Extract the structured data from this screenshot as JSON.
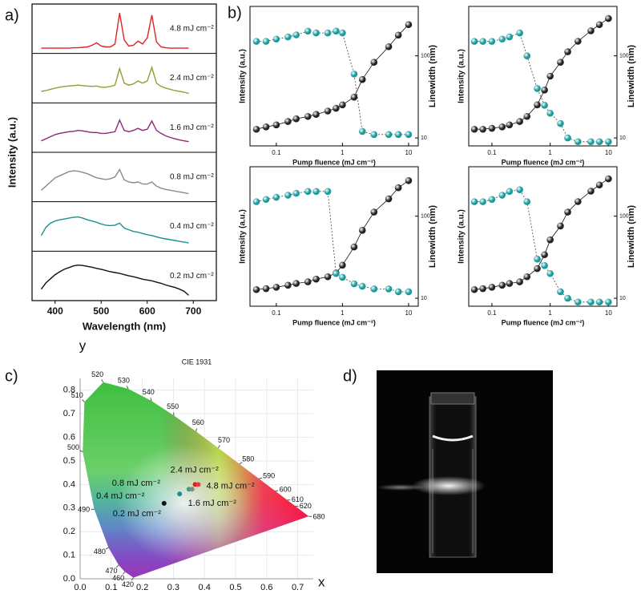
{
  "panel_labels": [
    "a)",
    "b)",
    "c)",
    "d)"
  ],
  "chart_data": [
    {
      "type": "line",
      "xlabel": "Wavelength (nm)",
      "ylabel": "Intensity (a.u.)",
      "x": [
        370,
        380,
        390,
        400,
        410,
        420,
        430,
        440,
        450,
        460,
        470,
        480,
        490,
        500,
        510,
        520,
        530,
        540,
        550,
        560,
        570,
        580,
        590,
        600,
        610,
        620,
        630,
        640,
        650,
        660,
        670,
        680,
        690
      ],
      "xlim": [
        350,
        750
      ],
      "xticks": [
        400,
        500,
        600,
        700
      ],
      "ylim": [
        0,
        1
      ],
      "series": [
        {
          "name": "4.8 mJ cm⁻²",
          "color": "#e02424",
          "values": [
            0.05,
            0.05,
            0.05,
            0.05,
            0.05,
            0.05,
            0.05,
            0.06,
            0.06,
            0.07,
            0.08,
            0.12,
            0.18,
            0.1,
            0.08,
            0.08,
            0.15,
            0.9,
            0.25,
            0.1,
            0.12,
            0.22,
            0.15,
            0.3,
            0.85,
            0.2,
            0.08,
            0.06,
            0.05,
            0.05,
            0.05,
            0.05,
            0.05
          ]
        },
        {
          "name": "2.4 mJ cm⁻²",
          "color": "#9a9a3a",
          "values": [
            0.2,
            0.22,
            0.25,
            0.28,
            0.3,
            0.32,
            0.33,
            0.34,
            0.35,
            0.34,
            0.33,
            0.32,
            0.33,
            0.3,
            0.3,
            0.32,
            0.35,
            0.75,
            0.4,
            0.35,
            0.38,
            0.45,
            0.4,
            0.45,
            0.78,
            0.4,
            0.32,
            0.28,
            0.25,
            0.22,
            0.2,
            0.18,
            0.15
          ]
        },
        {
          "name": "1.6 mJ cm⁻²",
          "color": "#8b2a7a",
          "values": [
            0.2,
            0.25,
            0.3,
            0.35,
            0.38,
            0.4,
            0.42,
            0.43,
            0.45,
            0.44,
            0.42,
            0.4,
            0.4,
            0.38,
            0.38,
            0.4,
            0.42,
            0.7,
            0.45,
            0.42,
            0.45,
            0.5,
            0.45,
            0.48,
            0.68,
            0.45,
            0.38,
            0.32,
            0.28,
            0.25,
            0.22,
            0.2,
            0.18
          ]
        },
        {
          "name": "0.8 mJ cm⁻²",
          "color": "#8a8a8a",
          "values": [
            0.2,
            0.3,
            0.4,
            0.5,
            0.55,
            0.6,
            0.65,
            0.67,
            0.66,
            0.63,
            0.6,
            0.55,
            0.5,
            0.48,
            0.46,
            0.48,
            0.52,
            0.7,
            0.45,
            0.4,
            0.38,
            0.4,
            0.35,
            0.35,
            0.4,
            0.3,
            0.25,
            0.22,
            0.2,
            0.18,
            0.16,
            0.14,
            0.12
          ]
        },
        {
          "name": "0.4 mJ cm⁻²",
          "color": "#1a9090",
          "values": [
            0.3,
            0.5,
            0.6,
            0.65,
            0.68,
            0.7,
            0.72,
            0.74,
            0.75,
            0.72,
            0.68,
            0.65,
            0.62,
            0.58,
            0.55,
            0.54,
            0.55,
            0.6,
            0.48,
            0.44,
            0.4,
            0.38,
            0.35,
            0.32,
            0.3,
            0.27,
            0.24,
            0.22,
            0.2,
            0.18,
            0.16,
            0.14,
            0.12
          ]
        },
        {
          "name": "0.2 mJ cm⁻²",
          "color": "#111111",
          "values": [
            0.2,
            0.35,
            0.45,
            0.55,
            0.62,
            0.68,
            0.72,
            0.76,
            0.78,
            0.77,
            0.75,
            0.73,
            0.7,
            0.68,
            0.65,
            0.62,
            0.6,
            0.58,
            0.55,
            0.52,
            0.5,
            0.47,
            0.44,
            0.42,
            0.4,
            0.37,
            0.34,
            0.3,
            0.27,
            0.24,
            0.2,
            0.15,
            0.05
          ]
        }
      ]
    },
    {
      "type": "scatter",
      "xlabel": "Pump fluence (mJ cm⁻²)",
      "ylabel": "Intensity (a.u.)",
      "y2label": "Linewidth (nm)",
      "log_x": true,
      "log_y": true,
      "x": [
        0.05,
        0.07,
        0.1,
        0.15,
        0.2,
        0.3,
        0.4,
        0.6,
        0.8,
        1,
        1.5,
        2,
        3,
        5,
        7,
        10
      ],
      "xlim": [
        0.04,
        14
      ],
      "xticks": [
        0.1,
        1,
        10
      ],
      "ylim": [
        1,
        10000
      ],
      "y2lim": [
        8,
        400
      ],
      "y2ticks": [
        10,
        100
      ],
      "series": [
        {
          "color": "#222222",
          "values": [
            3,
            3.5,
            4,
            5,
            6,
            7,
            8,
            10,
            12,
            15,
            25,
            80,
            250,
            700,
            1500,
            3000
          ]
        },
        {
          "color": "#1a9a9a",
          "axis": "y2",
          "values": [
            150,
            150,
            160,
            170,
            180,
            200,
            190,
            190,
            200,
            190,
            60,
            12,
            11,
            11,
            11,
            11
          ]
        }
      ]
    },
    {
      "type": "scatter",
      "xlabel": "Pump fluence (mJ cm⁻²)",
      "ylabel": "Intensity (a.u.)",
      "y2label": "Linewidth (nm)",
      "log_x": true,
      "log_y": true,
      "x": [
        0.05,
        0.07,
        0.1,
        0.15,
        0.2,
        0.3,
        0.4,
        0.6,
        0.8,
        1,
        1.5,
        2,
        3,
        5,
        7,
        10
      ],
      "xlim": [
        0.04,
        14
      ],
      "xticks": [
        0.1,
        1,
        10
      ],
      "ylim": [
        1,
        10000
      ],
      "y2lim": [
        8,
        400
      ],
      "y2ticks": [
        10,
        100
      ],
      "series": [
        {
          "color": "#222222",
          "values": [
            3,
            3,
            3.2,
            3.5,
            4,
            5,
            7,
            15,
            40,
            100,
            250,
            500,
            1000,
            2000,
            3000,
            4500
          ]
        },
        {
          "color": "#1a9a9a",
          "axis": "y2",
          "values": [
            150,
            150,
            150,
            160,
            170,
            190,
            100,
            40,
            25,
            20,
            15,
            10,
            9,
            9,
            9,
            9
          ]
        }
      ]
    },
    {
      "type": "scatter",
      "xlabel": "Pump fluence (mJ cm⁻²)",
      "ylabel": "Intensity (a.u.)",
      "y2label": "Linewidth (nm)",
      "log_x": true,
      "log_y": true,
      "x": [
        0.05,
        0.07,
        0.1,
        0.15,
        0.2,
        0.3,
        0.4,
        0.6,
        0.8,
        1,
        1.5,
        2,
        3,
        5,
        7,
        10
      ],
      "xlim": [
        0.04,
        14
      ],
      "xticks": [
        0.1,
        1,
        10
      ],
      "ylim": [
        1,
        10000
      ],
      "y2lim": [
        8,
        400
      ],
      "y2ticks": [
        10,
        100
      ],
      "series": [
        {
          "color": "#222222",
          "values": [
            3,
            3.2,
            3.5,
            4,
            4.5,
            5,
            6,
            7,
            9,
            15,
            50,
            150,
            500,
            1200,
            2500,
            4000
          ]
        },
        {
          "color": "#1a9a9a",
          "axis": "y2",
          "values": [
            150,
            160,
            170,
            180,
            190,
            200,
            200,
            200,
            20,
            18,
            15,
            14,
            13,
            13,
            12,
            12
          ]
        }
      ]
    },
    {
      "type": "scatter",
      "xlabel": "Pump fluence (mJ cm⁻²)",
      "ylabel": "Intensity (a.u.)",
      "y2label": "Linewidth (nm)",
      "log_x": true,
      "log_y": true,
      "x": [
        0.05,
        0.07,
        0.1,
        0.15,
        0.2,
        0.3,
        0.4,
        0.6,
        0.8,
        1,
        1.5,
        2,
        3,
        5,
        7,
        10
      ],
      "xlim": [
        0.04,
        14
      ],
      "xticks": [
        0.1,
        1,
        10
      ],
      "ylim": [
        1,
        10000
      ],
      "y2lim": [
        8,
        400
      ],
      "y2ticks": [
        10,
        100
      ],
      "series": [
        {
          "color": "#222222",
          "values": [
            3,
            3.2,
            3.5,
            4,
            4.5,
            5,
            7,
            12,
            30,
            80,
            200,
            500,
            1000,
            2000,
            3000,
            4500
          ]
        },
        {
          "color": "#1a9a9a",
          "axis": "y2",
          "values": [
            150,
            150,
            160,
            180,
            200,
            210,
            150,
            30,
            25,
            20,
            12,
            10,
            9,
            9,
            9,
            9
          ]
        }
      ]
    },
    {
      "type": "chromaticity",
      "title": "CIE 1931",
      "xlabel": "x",
      "ylabel": "y",
      "grid": true,
      "xlim": [
        0,
        0.75
      ],
      "ylim": [
        0,
        0.85
      ],
      "xticks": [
        {
          "value": 0,
          "label": "0.0"
        },
        0.1,
        0.2,
        0.3,
        0.4,
        0.5,
        0.6,
        0.7
      ],
      "yticks": [
        {
          "value": 0,
          "label": "0.0"
        },
        0.1,
        0.2,
        0.3,
        0.4,
        0.5,
        0.6,
        0.7,
        0.8
      ],
      "locus": {
        "labels": [
          420,
          460,
          470,
          480,
          490,
          500,
          510,
          520,
          530,
          540,
          550,
          560,
          570,
          580,
          590,
          600,
          610,
          620,
          680
        ],
        "x": [
          0.1714,
          0.144,
          0.1241,
          0.0913,
          0.0454,
          0.0082,
          0.0139,
          0.0743,
          0.1547,
          0.2296,
          0.3016,
          0.3731,
          0.4441,
          0.5125,
          0.5752,
          0.627,
          0.6658,
          0.6915,
          0.7347
        ],
        "y": [
          0.0051,
          0.0297,
          0.0578,
          0.1327,
          0.295,
          0.5384,
          0.7502,
          0.8338,
          0.8059,
          0.7543,
          0.6923,
          0.6245,
          0.5547,
          0.4866,
          0.4242,
          0.3725,
          0.334,
          0.3083,
          0.2653
        ]
      },
      "point_labels": [
        "0.2 mJ cm⁻²",
        "0.4 mJ cm⁻²",
        "0.8 mJ cm⁻²",
        "1.6 mJ cm⁻²",
        "2.4 mJ cm⁻²",
        "4.8 mJ cm⁻²"
      ],
      "colors": [
        "#111111",
        "#1a9090",
        "#3aa080",
        "#888888",
        "#cc2222",
        "#e04040"
      ],
      "x": [
        0.27,
        0.32,
        0.35,
        0.36,
        0.37,
        0.38
      ],
      "values": [
        0.32,
        0.36,
        0.38,
        0.38,
        0.4,
        0.4
      ]
    }
  ]
}
